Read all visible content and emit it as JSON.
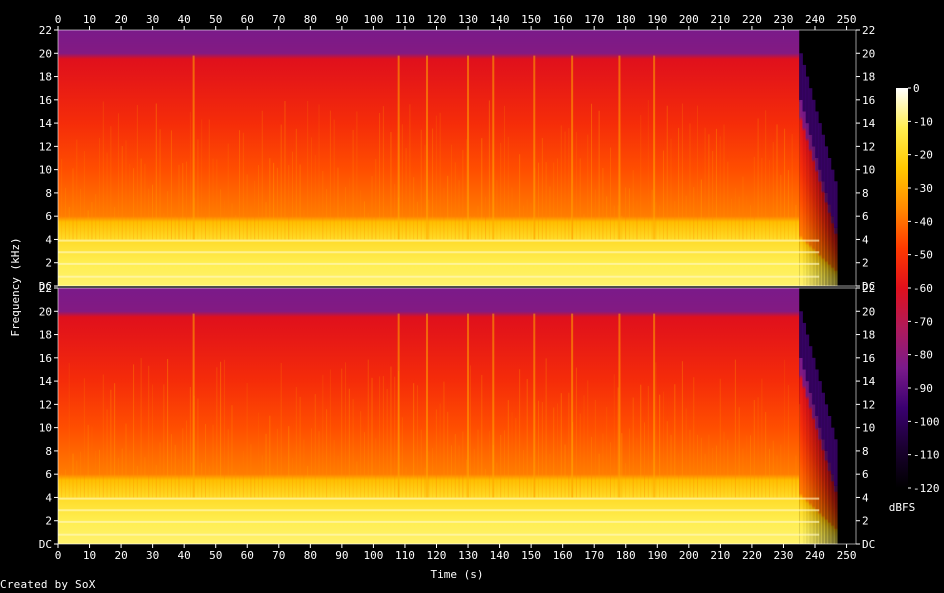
{
  "chart_data": {
    "type": "heatmap",
    "title": "",
    "xlabel": "Time (s)",
    "ylabel": "Frequency (kHz)",
    "x_ticks": [
      0,
      10,
      20,
      30,
      40,
      50,
      60,
      70,
      80,
      90,
      100,
      110,
      120,
      130,
      140,
      150,
      160,
      170,
      180,
      190,
      200,
      210,
      220,
      230,
      240,
      250
    ],
    "xlim": [
      0,
      253
    ],
    "channels": [
      {
        "y_tick_labels": [
          "DC",
          "2",
          "4",
          "6",
          "8",
          "10",
          "12",
          "14",
          "16",
          "18",
          "20",
          "22"
        ],
        "y_tick_values": [
          0,
          2,
          4,
          6,
          8,
          10,
          12,
          14,
          16,
          18,
          20,
          22
        ],
        "ylim": [
          0,
          22
        ]
      },
      {
        "y_tick_labels": [
          "DC",
          "2",
          "4",
          "6",
          "8",
          "10",
          "12",
          "14",
          "16",
          "18",
          "20",
          "22"
        ],
        "y_tick_values": [
          0,
          2,
          4,
          6,
          8,
          10,
          12,
          14,
          16,
          18,
          20,
          22
        ],
        "ylim": [
          0,
          22
        ]
      }
    ],
    "colorbar": {
      "label": "dBFS",
      "range": [
        -120,
        0
      ],
      "ticks": [
        0,
        -10,
        -20,
        -30,
        -40,
        -50,
        -60,
        -70,
        -80,
        -90,
        -100,
        -110,
        -120
      ],
      "stops": [
        "#000000",
        "#1a0030",
        "#3a0070",
        "#7a1a8a",
        "#b01a5a",
        "#e0101c",
        "#ff3a00",
        "#ff8a00",
        "#ffc800",
        "#ffee50",
        "#ffffff"
      ]
    },
    "spectrum_profile_db": [
      {
        "khz": 0.0,
        "db": -10
      },
      {
        "khz": 2.0,
        "db": -12
      },
      {
        "khz": 4.0,
        "db": -18
      },
      {
        "khz": 5.5,
        "db": -26
      },
      {
        "khz": 6.0,
        "db": -38
      },
      {
        "khz": 10.0,
        "db": -45
      },
      {
        "khz": 14.0,
        "db": -52
      },
      {
        "khz": 18.0,
        "db": -58
      },
      {
        "khz": 19.5,
        "db": -60
      },
      {
        "khz": 20.0,
        "db": -82
      },
      {
        "khz": 22.0,
        "db": -84
      }
    ],
    "fade_out_start_s": 235,
    "end_of_audio_s": 247,
    "notable_transients_s": [
      43,
      108,
      117,
      130,
      138,
      151,
      163,
      178,
      189
    ]
  },
  "footer": {
    "credit": "Created by SoX"
  }
}
